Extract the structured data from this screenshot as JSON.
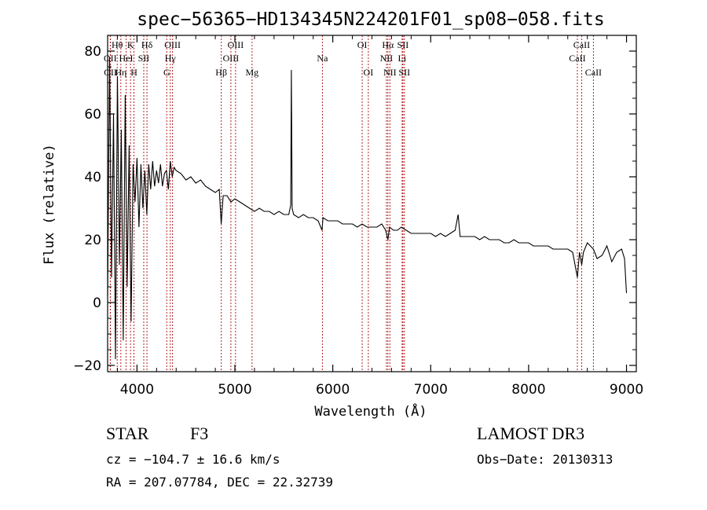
{
  "chart_data": {
    "type": "line",
    "title": "spec−56365−HD134345N224201F01_sp08−058.fits",
    "xlabel": "Wavelength (Å)",
    "ylabel": "Flux (relative)",
    "xlim": [
      3700,
      9100
    ],
    "ylim": [
      -22,
      85
    ],
    "xticks": [
      4000,
      5000,
      6000,
      7000,
      8000,
      9000
    ],
    "xtick_labels": [
      "4000",
      "5000",
      "6000",
      "7000",
      "8000",
      "9000"
    ],
    "yticks": [
      -20,
      0,
      20,
      40,
      60,
      80
    ],
    "ytick_labels": [
      "−20",
      "0",
      "20",
      "40",
      "60",
      "80"
    ],
    "line_color": "#000000",
    "marker_color": "#b22222",
    "spectrum": {
      "x": [
        3700,
        3720,
        3740,
        3760,
        3780,
        3800,
        3820,
        3840,
        3860,
        3880,
        3900,
        3920,
        3940,
        3960,
        3980,
        4000,
        4020,
        4040,
        4060,
        4080,
        4100,
        4120,
        4140,
        4160,
        4180,
        4200,
        4220,
        4240,
        4260,
        4280,
        4300,
        4320,
        4340,
        4360,
        4380,
        4400,
        4450,
        4500,
        4550,
        4600,
        4650,
        4700,
        4750,
        4800,
        4840,
        4860,
        4880,
        4920,
        4960,
        5000,
        5050,
        5100,
        5150,
        5200,
        5250,
        5300,
        5350,
        5400,
        5450,
        5500,
        5550,
        5570,
        5577,
        5585,
        5600,
        5650,
        5700,
        5750,
        5800,
        5850,
        5890,
        5900,
        5950,
        6000,
        6050,
        6100,
        6150,
        6200,
        6250,
        6300,
        6350,
        6400,
        6450,
        6500,
        6540,
        6563,
        6580,
        6620,
        6660,
        6700,
        6750,
        6800,
        6850,
        6900,
        6950,
        7000,
        7050,
        7100,
        7150,
        7200,
        7250,
        7280,
        7300,
        7350,
        7400,
        7450,
        7500,
        7550,
        7600,
        7650,
        7700,
        7750,
        7800,
        7850,
        7900,
        7950,
        8000,
        8050,
        8100,
        8150,
        8200,
        8250,
        8300,
        8350,
        8400,
        8450,
        8498,
        8520,
        8542,
        8560,
        8600,
        8662,
        8700,
        8750,
        8800,
        8850,
        8900,
        8950,
        8980,
        9000
      ],
      "y": [
        2,
        78,
        8,
        60,
        -18,
        72,
        12,
        55,
        -12,
        66,
        5,
        50,
        -6,
        44,
        32,
        46,
        24,
        44,
        30,
        42,
        28,
        44,
        36,
        45,
        37,
        42,
        38,
        44,
        37,
        41,
        42,
        36,
        45,
        40,
        43,
        42,
        41,
        39,
        40,
        38,
        39,
        37,
        36,
        35,
        36,
        25,
        34,
        34,
        32,
        33,
        32,
        31,
        30,
        29,
        30,
        29,
        29,
        28,
        29,
        28,
        28,
        31,
        74,
        30,
        28,
        27,
        28,
        27,
        27,
        26,
        23,
        27,
        26,
        26,
        26,
        25,
        25,
        25,
        24,
        25,
        24,
        24,
        24,
        25,
        23,
        20,
        24,
        23,
        23,
        24,
        23,
        22,
        22,
        22,
        22,
        22,
        21,
        22,
        21,
        22,
        23,
        28,
        21,
        21,
        21,
        21,
        20,
        21,
        20,
        20,
        20,
        19,
        19,
        20,
        19,
        19,
        19,
        18,
        18,
        18,
        18,
        17,
        17,
        17,
        17,
        16,
        8,
        16,
        12,
        16,
        19,
        17,
        14,
        15,
        18,
        13,
        16,
        17,
        14,
        3
      ]
    },
    "line_markers": [
      {
        "label": "Hθ",
        "x": 3798,
        "row": 0
      },
      {
        "label": "OII",
        "x": 3727,
        "row": 1
      },
      {
        "label": "OII",
        "x": 3729,
        "row": 2
      },
      {
        "label": "K",
        "x": 3934,
        "row": 0
      },
      {
        "label": "HeI",
        "x": 3889,
        "row": 1
      },
      {
        "label": "Hη",
        "x": 3835,
        "row": 2
      },
      {
        "label": "SII",
        "x": 4069,
        "row": 1
      },
      {
        "label": "H",
        "x": 3969,
        "row": 2
      },
      {
        "label": "Hδ",
        "x": 4102,
        "row": 0
      },
      {
        "label": "OIII",
        "x": 4363,
        "row": 0
      },
      {
        "label": "Hγ",
        "x": 4340,
        "row": 1
      },
      {
        "label": "G",
        "x": 4304,
        "row": 2
      },
      {
        "label": "Hβ",
        "x": 4861,
        "row": 2
      },
      {
        "label": "OIII",
        "x": 5007,
        "row": 0
      },
      {
        "label": "OIII",
        "x": 4959,
        "row": 1
      },
      {
        "label": "Mg",
        "x": 5175,
        "row": 2
      },
      {
        "label": "Na",
        "x": 5894,
        "row": 1
      },
      {
        "label": "OI",
        "x": 6300,
        "row": 0
      },
      {
        "label": "OI",
        "x": 6363,
        "row": 2
      },
      {
        "label": "Hα",
        "x": 6563,
        "row": 0
      },
      {
        "label": "NII",
        "x": 6548,
        "row": 1
      },
      {
        "label": "NII",
        "x": 6583,
        "row": 2
      },
      {
        "label": "SII",
        "x": 6716,
        "row": 0
      },
      {
        "label": "Li",
        "x": 6708,
        "row": 1
      },
      {
        "label": "SII",
        "x": 6731,
        "row": 2
      },
      {
        "label": "CaII",
        "x": 8542,
        "row": 0
      },
      {
        "label": "CaII",
        "x": 8498,
        "row": 1
      },
      {
        "label": "CaII",
        "x": 8662,
        "row": 2
      }
    ]
  },
  "info": {
    "object_class": "STAR",
    "subclass": "F3",
    "survey": "LAMOST DR3",
    "velocity": "cz = −104.7 ± 16.6 km/s",
    "obs_date": "Obs−Date: 20130313",
    "coords": "RA = 207.07784, DEC =  22.32739"
  }
}
